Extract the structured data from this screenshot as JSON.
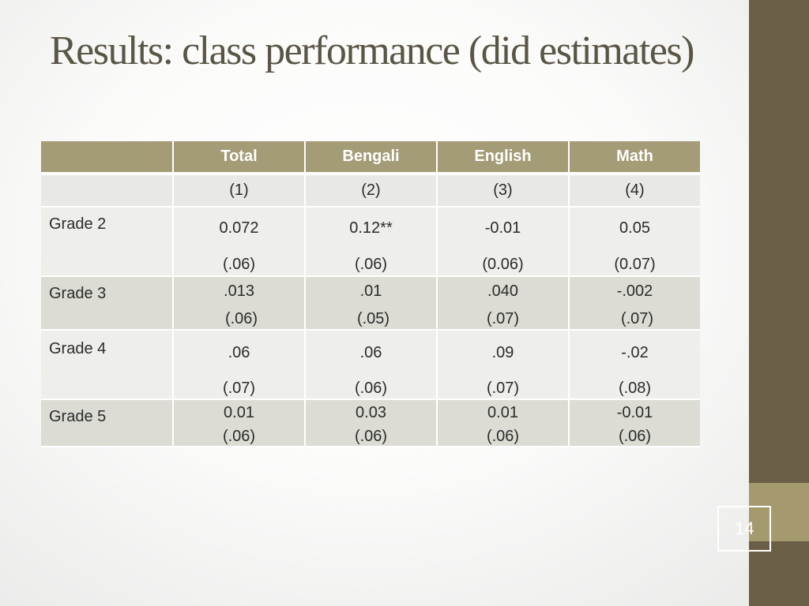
{
  "slide": {
    "title": "Results: class performance (did estimates)",
    "page_number": "14"
  },
  "table": {
    "columns": [
      "Total",
      "Bengali",
      "English",
      "Math"
    ],
    "column_numbers": [
      "(1)",
      "(2)",
      "(3)",
      "(4)"
    ],
    "rows": [
      {
        "label": "Grade 2",
        "estimates": [
          "0.072",
          "0.12**",
          "-0.01",
          "0.05"
        ],
        "std_errors": [
          "(.06)",
          "(.06)",
          "(0.06)",
          "(0.07)"
        ]
      },
      {
        "label": "Grade 3",
        "estimates": [
          ".013",
          ".01",
          ".040",
          "-.002"
        ],
        "std_errors": [
          "(.06)",
          "(.05)",
          "(.07)",
          "(.07)"
        ]
      },
      {
        "label": "Grade 4",
        "estimates": [
          ".06",
          ".06",
          ".09",
          "-.02"
        ],
        "std_errors": [
          "(.07)",
          "(.06)",
          "(.07)",
          "(.08)"
        ]
      },
      {
        "label": "Grade 5",
        "estimates": [
          "0.01",
          "0.03",
          "0.01",
          "-0.01"
        ],
        "std_errors": [
          "(.06)",
          "(.06)",
          "(.06)",
          "(.06)"
        ]
      }
    ]
  },
  "colors": {
    "header_fill": "#a39c76",
    "sidebar": "#6a5e47",
    "sidebar_band": "#a49a6e",
    "title_text": "#5a5646"
  }
}
